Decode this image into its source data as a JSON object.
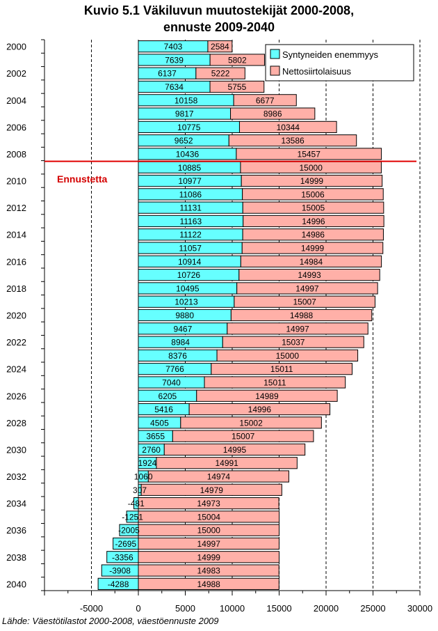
{
  "chart_data": {
    "type": "bar",
    "stacked": true,
    "orientation": "horizontal",
    "title": "Kuvio 5.1 Väkiluvun muutostekijät 2000-2008,",
    "subtitle": "ennuste 2009-2040",
    "source": "Lähde: Väestötilastot 2000-2008, väestöennuste 2009",
    "forecast_label": "Ennustetta",
    "forecast_start_year": 2009,
    "xlim": [
      -10000,
      30000
    ],
    "xticks": [
      -5000,
      0,
      5000,
      10000,
      15000,
      20000,
      25000,
      30000
    ],
    "xtick_labels": [
      "-5000",
      "0",
      "5000",
      "10000",
      "15000",
      "20000",
      "25000",
      "30000"
    ],
    "grid": "vertical dashed",
    "legend_position": "top-right",
    "categories": [
      2000,
      2001,
      2002,
      2003,
      2004,
      2005,
      2006,
      2007,
      2008,
      2009,
      2010,
      2011,
      2012,
      2013,
      2014,
      2015,
      2016,
      2017,
      2018,
      2019,
      2020,
      2021,
      2022,
      2023,
      2024,
      2025,
      2026,
      2027,
      2028,
      2029,
      2030,
      2031,
      2032,
      2033,
      2034,
      2035,
      2036,
      2037,
      2038,
      2039,
      2040
    ],
    "ytick_labels": [
      "2000",
      "2002",
      "2004",
      "2006",
      "2008",
      "2010",
      "2012",
      "2014",
      "2016",
      "2018",
      "2020",
      "2022",
      "2024",
      "2026",
      "2028",
      "2030",
      "2032",
      "2034",
      "2036",
      "2038",
      "2040"
    ],
    "series": [
      {
        "name": "Syntyneiden enemmyys",
        "color": "#66ffff",
        "values": [
          7403,
          7639,
          6137,
          7634,
          10158,
          9817,
          10775,
          9652,
          10436,
          10885,
          10977,
          11086,
          11131,
          11163,
          11122,
          11057,
          10914,
          10726,
          10495,
          10213,
          9880,
          9467,
          8984,
          8376,
          7766,
          7040,
          6205,
          5416,
          4505,
          3655,
          2760,
          1924,
          1060,
          307,
          -481,
          -1251,
          -2005,
          -2695,
          -3356,
          -3908,
          -4288
        ]
      },
      {
        "name": "Nettosiirtolaisuus",
        "color": "#ffb0a8",
        "values": [
          2584,
          5802,
          5222,
          5755,
          6677,
          8986,
          10344,
          13586,
          15457,
          15000,
          14999,
          15006,
          15005,
          14996,
          14986,
          14999,
          14984,
          14993,
          14997,
          15007,
          14988,
          14997,
          15037,
          15000,
          15011,
          15011,
          14989,
          14996,
          15002,
          15007,
          14995,
          14991,
          14974,
          14979,
          14973,
          15004,
          15000,
          14997,
          14999,
          14983,
          14988
        ]
      }
    ]
  }
}
